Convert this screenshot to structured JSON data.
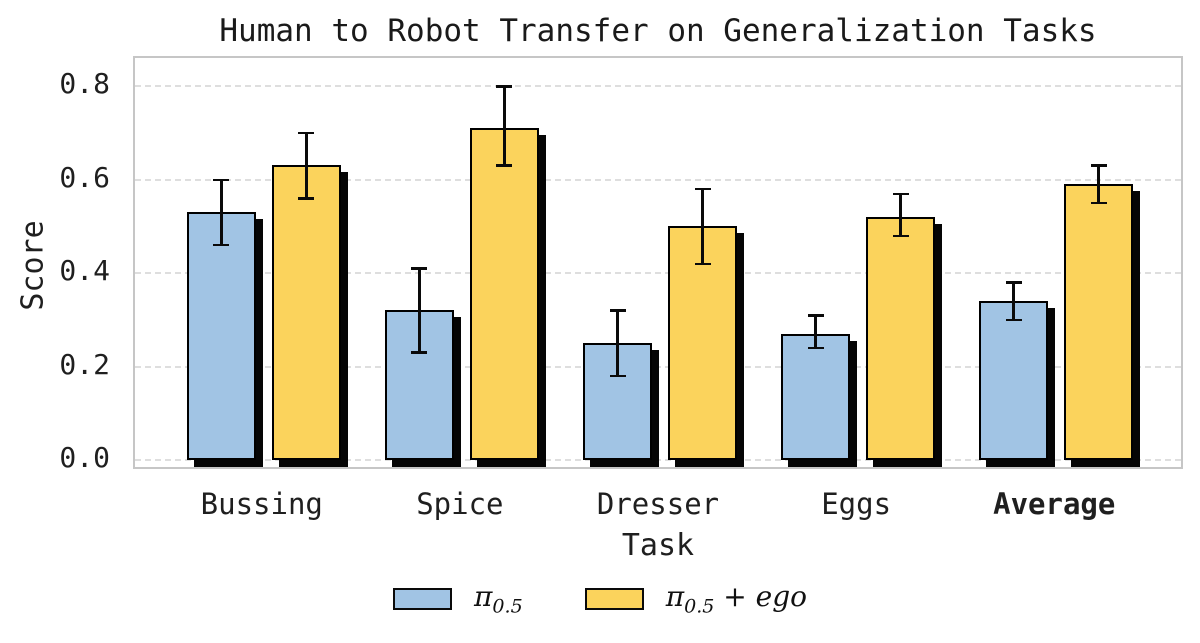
{
  "title": "Human to Robot Transfer on Generalization Tasks",
  "chart_data": {
    "type": "bar",
    "title": "Human to Robot Transfer on Generalization Tasks",
    "xlabel": "Task",
    "ylabel": "Score",
    "categories": [
      "Bussing",
      "Spice",
      "Dresser",
      "Eggs",
      "Average"
    ],
    "categories_bold": [
      false,
      false,
      false,
      false,
      true
    ],
    "yticks": [
      0.0,
      0.2,
      0.4,
      0.6,
      0.8
    ],
    "ytick_labels": [
      "0.0",
      "0.2",
      "0.4",
      "0.6",
      "0.8"
    ],
    "ylim": [
      0,
      0.86
    ],
    "grid": "horizontal dashed",
    "legend_position": "bottom center",
    "bar_style": {
      "edge_color": "#000000",
      "shadow_color": "#050505",
      "frame_color": "#c6c6c6",
      "grid_color": "#dedede"
    },
    "series": [
      {
        "name": "π0.5",
        "name_parts": {
          "symbol": "π",
          "subscript": "0.5",
          "suffix": ""
        },
        "color": "#a1c4e4",
        "values": [
          0.53,
          0.32,
          0.25,
          0.27,
          0.34
        ],
        "err_low": [
          0.46,
          0.23,
          0.18,
          0.24,
          0.3
        ],
        "err_high": [
          0.6,
          0.41,
          0.32,
          0.31,
          0.38
        ]
      },
      {
        "name": "π0.5 + ego",
        "name_parts": {
          "symbol": "π",
          "subscript": "0.5",
          "suffix": " + ego"
        },
        "color": "#fbd35c",
        "values": [
          0.63,
          0.71,
          0.5,
          0.52,
          0.59
        ],
        "err_low": [
          0.56,
          0.63,
          0.42,
          0.48,
          0.55
        ],
        "err_high": [
          0.7,
          0.8,
          0.58,
          0.57,
          0.63
        ]
      }
    ]
  }
}
